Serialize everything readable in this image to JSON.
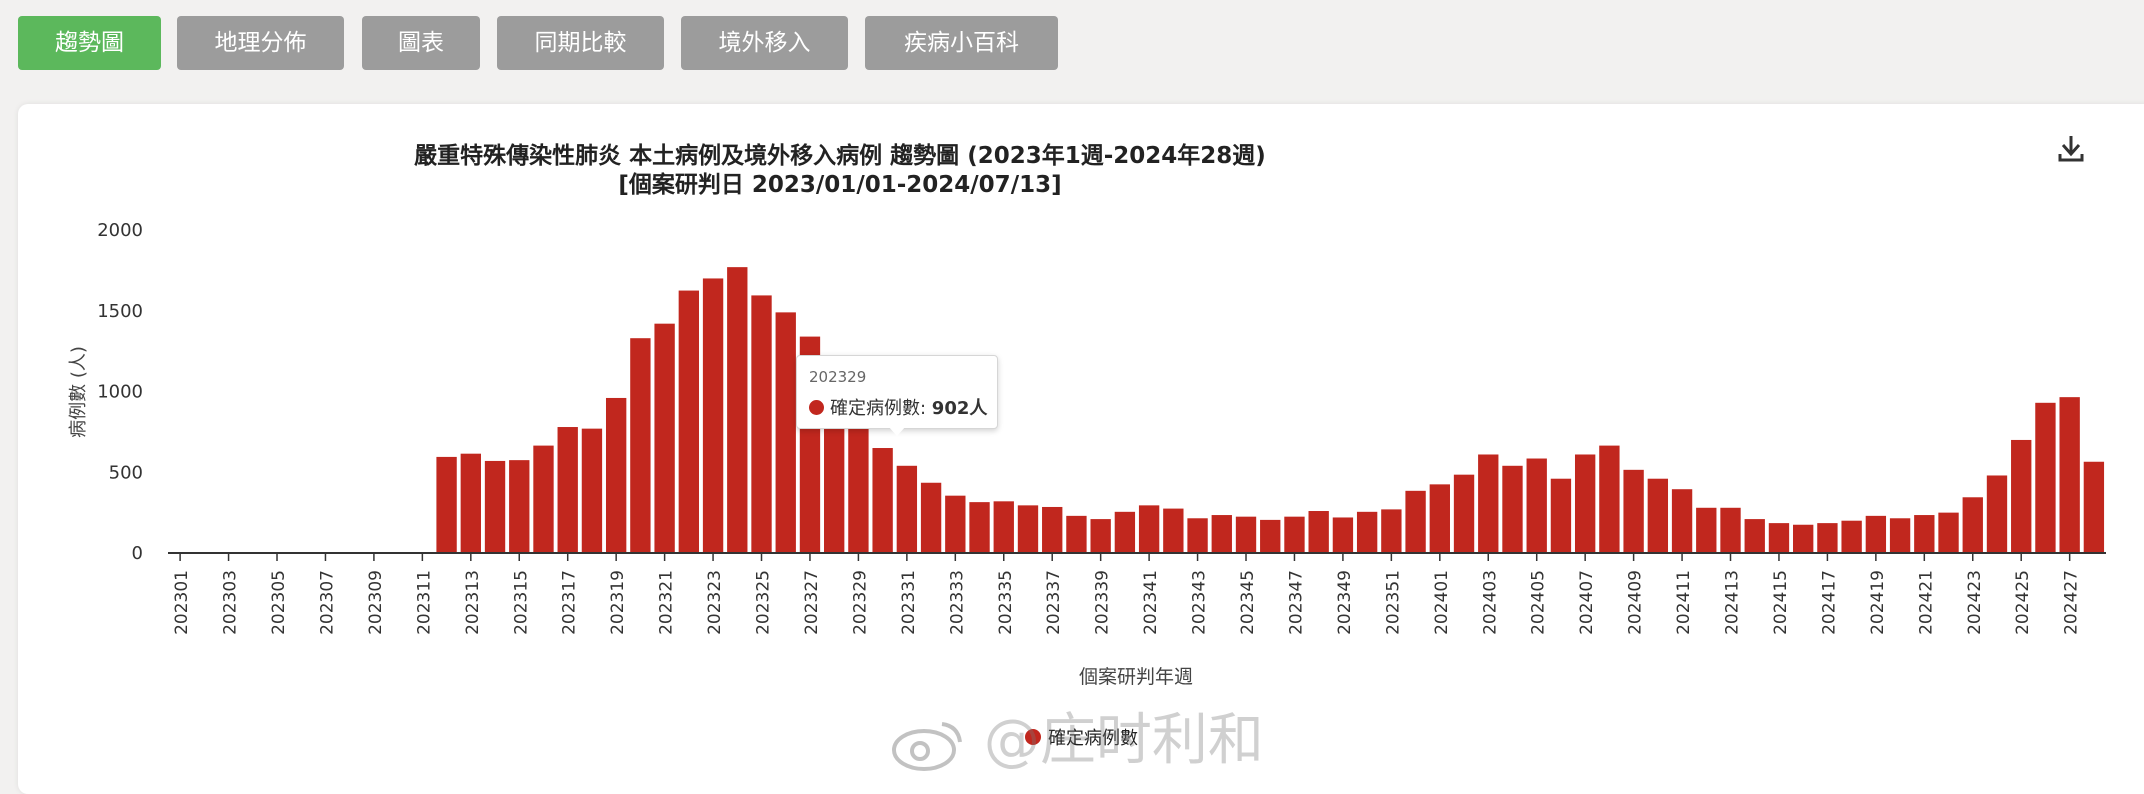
{
  "tabs": [
    {
      "label": "趨勢圖",
      "active": true
    },
    {
      "label": "地理分佈",
      "active": false
    },
    {
      "label": "圖表",
      "active": false
    },
    {
      "label": "同期比較",
      "active": false
    },
    {
      "label": "境外移入",
      "active": false
    },
    {
      "label": "疾病小百科",
      "active": false
    }
  ],
  "download_icon": "download-icon",
  "colors": {
    "bar": "#c1271e",
    "active_tab": "#5cb85c",
    "tab": "#9c9c9c"
  },
  "tooltip": {
    "week": "202329",
    "series": "確定病例數",
    "value": "902人"
  },
  "watermark": {
    "text": "@庄时利和",
    "logo": "weibo-logo"
  },
  "chart_data": {
    "type": "bar",
    "title": "嚴重特殊傳染性肺炎 本土病例及境外移入病例 趨勢圖 (2023年1週-2024年28週)",
    "subtitle": "[個案研判日 2023/01/01-2024/07/13]",
    "xlabel": "個案研判年週",
    "ylabel": "病例數 (人)",
    "ylim": [
      0,
      2000
    ],
    "yticks": [
      0,
      500,
      1000,
      1500,
      2000
    ],
    "grid": false,
    "legend_position": "bottom-center",
    "xtick_labels": [
      "202301",
      "202303",
      "202305",
      "202307",
      "202309",
      "202311",
      "202313",
      "202315",
      "202317",
      "202319",
      "202321",
      "202323",
      "202325",
      "202327",
      "202329",
      "202331",
      "202333",
      "202335",
      "202337",
      "202339",
      "202341",
      "202343",
      "202345",
      "202347",
      "202349",
      "202351",
      "202401",
      "202403",
      "202405",
      "202407",
      "202409",
      "202411",
      "202413",
      "202415",
      "202417",
      "202419",
      "202421",
      "202423",
      "202425",
      "202427"
    ],
    "categories": [
      "202301",
      "202302",
      "202303",
      "202304",
      "202305",
      "202306",
      "202307",
      "202308",
      "202309",
      "202310",
      "202311",
      "202312",
      "202313",
      "202314",
      "202315",
      "202316",
      "202317",
      "202318",
      "202319",
      "202320",
      "202321",
      "202322",
      "202323",
      "202324",
      "202325",
      "202326",
      "202327",
      "202328",
      "202329",
      "202330",
      "202331",
      "202332",
      "202333",
      "202334",
      "202335",
      "202336",
      "202337",
      "202338",
      "202339",
      "202340",
      "202341",
      "202342",
      "202343",
      "202344",
      "202345",
      "202346",
      "202347",
      "202348",
      "202349",
      "202350",
      "202351",
      "202352",
      "202401",
      "202402",
      "202403",
      "202404",
      "202405",
      "202406",
      "202407",
      "202408",
      "202409",
      "202410",
      "202411",
      "202412",
      "202413",
      "202414",
      "202415",
      "202416",
      "202417",
      "202418",
      "202419",
      "202420",
      "202421",
      "202422",
      "202423",
      "202424",
      "202425",
      "202426",
      "202427",
      "202428"
    ],
    "series": [
      {
        "name": "確定病例數",
        "color": "#c1271e",
        "values": [
          0,
          0,
          0,
          0,
          0,
          0,
          0,
          0,
          0,
          0,
          0,
          595,
          615,
          570,
          575,
          665,
          780,
          770,
          960,
          1330,
          1420,
          1625,
          1700,
          1770,
          1595,
          1490,
          1340,
          1140,
          902,
          650,
          540,
          435,
          355,
          315,
          320,
          295,
          285,
          230,
          210,
          255,
          295,
          275,
          215,
          235,
          225,
          205,
          225,
          260,
          220,
          255,
          270,
          385,
          425,
          485,
          610,
          540,
          585,
          460,
          610,
          665,
          515,
          460,
          395,
          280,
          280,
          210,
          185,
          175,
          185,
          200,
          230,
          215,
          235,
          250,
          345,
          480,
          700,
          930,
          965,
          565
        ]
      }
    ]
  }
}
